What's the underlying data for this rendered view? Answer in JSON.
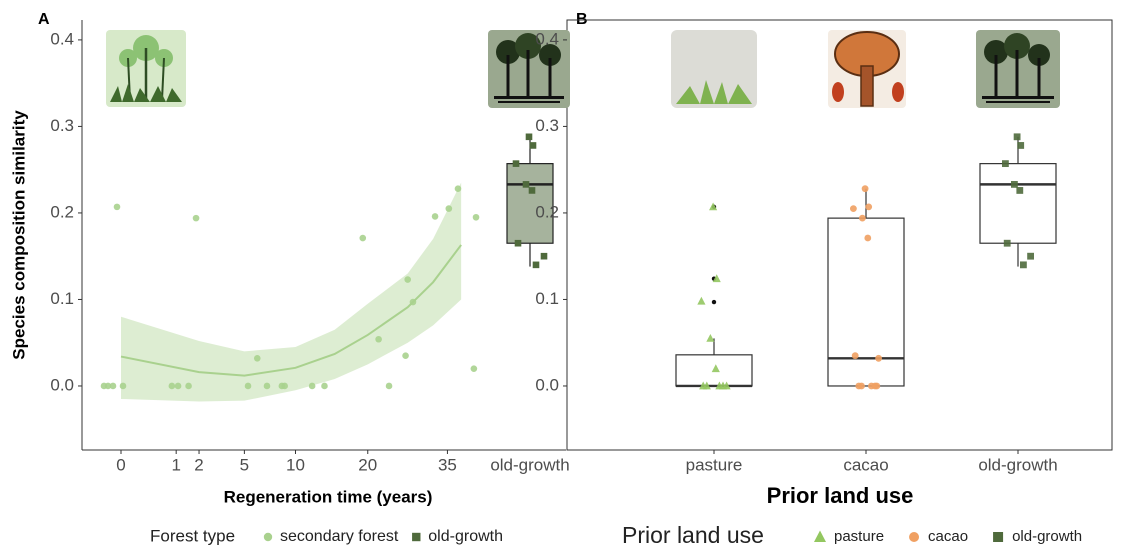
{
  "chart_data": [
    {
      "type": "scatter",
      "panel": "A",
      "ylabel": "Species composition similarity",
      "xlabel": "Regeneration time (years)",
      "xscale": "sqrt",
      "xlim": [
        0,
        44
      ],
      "xticks": [
        0,
        1,
        2,
        5,
        10,
        20,
        35
      ],
      "ylim": [
        -0.074,
        0.423
      ],
      "yticks": [
        {
          "value": 0,
          "label": "0.0"
        },
        0.1,
        0.2,
        0.3,
        0.4
      ],
      "legend_title": "Forest type",
      "series": [
        {
          "name": "secondary forest",
          "color": "#a9d18e",
          "marker": "circle",
          "x": [
            0,
            0,
            0,
            0,
            0,
            0.85,
            1.07,
            1.5,
            1.85,
            5.3,
            6.1,
            7.0,
            8.5,
            8.8,
            12.0,
            13.6,
            19.2,
            21.8,
            23.6,
            26.6,
            27.0,
            28.0,
            32.4,
            35.3,
            37.3,
            41.4,
            40.9
          ],
          "values": [
            0,
            0,
            0,
            0,
            0.207,
            0,
            0,
            0,
            0.194,
            0,
            0.032,
            0,
            0,
            0,
            0,
            0,
            0.171,
            0.054,
            0,
            0.035,
            0.123,
            0.097,
            0.196,
            0.205,
            0.228,
            0.195,
            0.02
          ]
        }
      ],
      "trend": {
        "color": "#a9d18e",
        "x": [
          0,
          2,
          5,
          10,
          15,
          20,
          27,
          32,
          38
        ],
        "values": [
          0.034,
          0.016,
          0.012,
          0.021,
          0.037,
          0.059,
          0.091,
          0.12,
          0.163
        ],
        "lower": [
          -0.015,
          -0.018,
          -0.017,
          -0.005,
          0.008,
          0.025,
          0.05,
          0.07,
          0.1
        ],
        "upper": [
          0.08,
          0.052,
          0.04,
          0.045,
          0.065,
          0.095,
          0.13,
          0.17,
          0.235
        ]
      },
      "box": {
        "category": "old-growth",
        "name": "old-growth",
        "color": "#4f6a3c",
        "fill": "#a6b39d",
        "marker": "square",
        "whislo": 0.138,
        "q1": 0.165,
        "med": 0.233,
        "q3": 0.257,
        "whishi": 0.288,
        "values": [
          0.288,
          0.278,
          0.257,
          0.233,
          0.226,
          0.165,
          0.15,
          0.14
        ]
      }
    },
    {
      "type": "box",
      "panel": "B",
      "xlabel": "Prior land use",
      "legend_title": "Prior land use",
      "categories": [
        "pasture",
        "cacao",
        "old-growth"
      ],
      "ylim": [
        -0.074,
        0.423
      ],
      "yticks": [
        {
          "value": 0,
          "label": "0.0"
        },
        0.1,
        0.2,
        0.3,
        0.4
      ],
      "series": [
        {
          "name": "pasture",
          "color": "#93c760",
          "marker": "triangle",
          "whislo": 0,
          "q1": 0,
          "med": 0,
          "q3": 0.036,
          "whishi": 0.055,
          "outliers": [
            0.207,
            0.124,
            0.097
          ],
          "values": [
            0.207,
            0.124,
            0.098,
            0.055,
            0.02,
            0,
            0,
            0,
            0,
            0
          ]
        },
        {
          "name": "cacao",
          "color": "#f0a062",
          "marker": "circle",
          "whislo": 0,
          "q1": 0,
          "med": 0.032,
          "q3": 0.194,
          "whishi": 0.228,
          "outliers": [],
          "values": [
            0.228,
            0.207,
            0.205,
            0.194,
            0.171,
            0.035,
            0.032,
            0,
            0,
            0,
            0,
            0
          ]
        },
        {
          "name": "old-growth",
          "color": "#4f6a3c",
          "marker": "square",
          "whislo": 0.138,
          "q1": 0.165,
          "med": 0.233,
          "q3": 0.257,
          "whishi": 0.288,
          "outliers": [],
          "values": [
            0.288,
            0.278,
            0.257,
            0.233,
            0.226,
            0.165,
            0.15,
            0.14
          ]
        }
      ]
    }
  ]
}
